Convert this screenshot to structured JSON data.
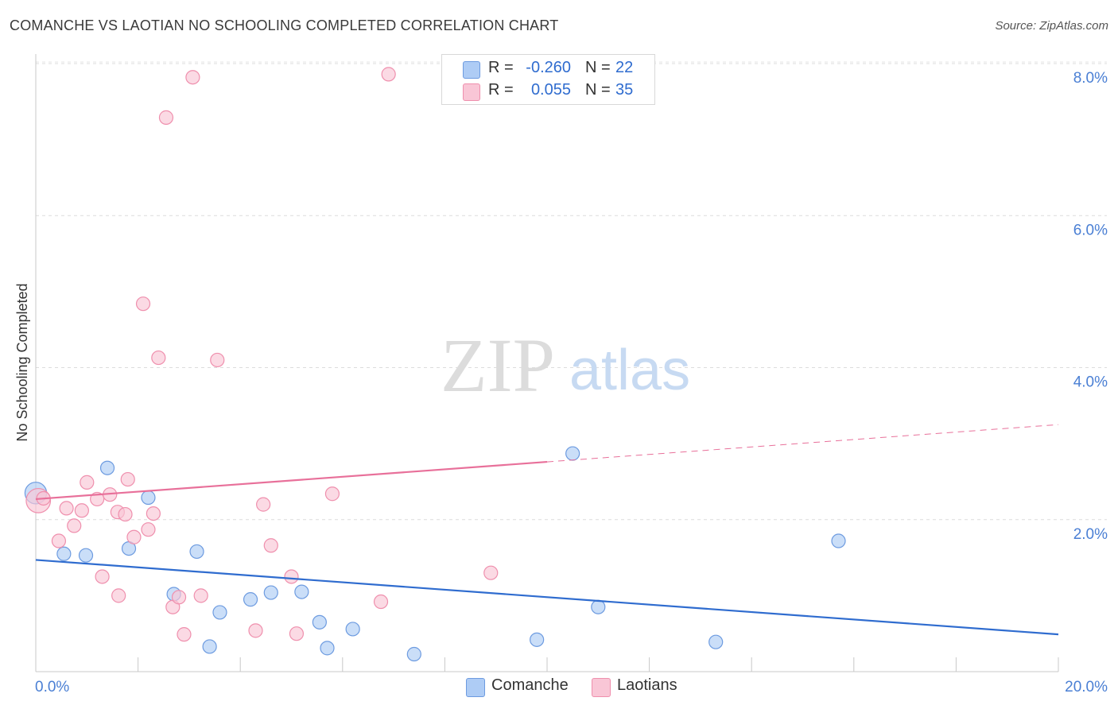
{
  "title": "COMANCHE VS LAOTIAN NO SCHOOLING COMPLETED CORRELATION CHART",
  "source": "Source: ZipAtlas.com",
  "watermark": {
    "zip": "ZIP",
    "atlas": "atlas"
  },
  "legend": {
    "rows": [
      {
        "r_label": "R =",
        "r_value": "-0.260",
        "n_label": "N =",
        "n_value": "22",
        "color": "#aeccf5",
        "border": "#6d9be0"
      },
      {
        "r_label": "R =",
        "r_value": "0.055",
        "n_label": "N =",
        "n_value": "35",
        "color": "#f9c6d6",
        "border": "#ef8fad"
      }
    ]
  },
  "bottom_legend": [
    {
      "label": "Comanche",
      "color": "#aeccf5",
      "border": "#6d9be0"
    },
    {
      "label": "Laotians",
      "color": "#f9c6d6",
      "border": "#ef8fad"
    }
  ],
  "chart_data": {
    "type": "scatter",
    "title": "COMANCHE VS LAOTIAN NO SCHOOLING COMPLETED CORRELATION CHART",
    "xlabel": "",
    "ylabel": "No Schooling Completed",
    "xlim": [
      0,
      20
    ],
    "ylim": [
      0,
      8
    ],
    "x_tick_labels": [
      "0.0%",
      "20.0%"
    ],
    "y_ticks": [
      2,
      4,
      6,
      8
    ],
    "y_tick_labels": [
      "2.0%",
      "4.0%",
      "6.0%",
      "8.0%"
    ],
    "grid": "horizontal dashed",
    "legend_placement": "top-center",
    "series": [
      {
        "name": "Comanche",
        "color": "#6d9be0",
        "fill": "#aeccf5",
        "trend": {
          "x": [
            0,
            20
          ],
          "y": [
            1.47,
            0.49
          ],
          "color": "#2f6ccf",
          "dashed_from": null
        },
        "points": [
          [
            0.0,
            2.35,
            1.6
          ],
          [
            1.4,
            2.68,
            1
          ],
          [
            2.2,
            2.29,
            1
          ],
          [
            0.55,
            1.55,
            1
          ],
          [
            0.98,
            1.53,
            1
          ],
          [
            1.82,
            1.62,
            1
          ],
          [
            3.15,
            1.58,
            1
          ],
          [
            2.7,
            1.02,
            1
          ],
          [
            4.2,
            0.95,
            1
          ],
          [
            4.6,
            1.04,
            1
          ],
          [
            5.2,
            1.05,
            1
          ],
          [
            3.6,
            0.78,
            1
          ],
          [
            5.55,
            0.65,
            1
          ],
          [
            6.2,
            0.56,
            1
          ],
          [
            3.4,
            0.33,
            1
          ],
          [
            5.7,
            0.31,
            1
          ],
          [
            7.4,
            0.23,
            1
          ],
          [
            9.8,
            0.42,
            1
          ],
          [
            10.5,
            2.87,
            1
          ],
          [
            11.0,
            0.85,
            1
          ],
          [
            13.3,
            0.39,
            1
          ],
          [
            15.7,
            1.72,
            1
          ]
        ]
      },
      {
        "name": "Laotians",
        "color": "#ef8fad",
        "fill": "#f9c6d6",
        "trend": {
          "x": [
            0,
            20
          ],
          "y": [
            2.27,
            3.25
          ],
          "color": "#e8709a",
          "dashed_from": 10
        },
        "points": [
          [
            0.05,
            2.25,
            1.8
          ],
          [
            0.15,
            2.28,
            1
          ],
          [
            0.45,
            1.72,
            1
          ],
          [
            0.6,
            2.15,
            1
          ],
          [
            0.75,
            1.92,
            1
          ],
          [
            0.9,
            2.12,
            1
          ],
          [
            1.0,
            2.49,
            1
          ],
          [
            1.2,
            2.27,
            1
          ],
          [
            1.3,
            1.25,
            1
          ],
          [
            1.45,
            2.33,
            1
          ],
          [
            1.6,
            2.1,
            1
          ],
          [
            1.75,
            2.07,
            1
          ],
          [
            1.62,
            1.0,
            1
          ],
          [
            1.8,
            2.53,
            1
          ],
          [
            1.92,
            1.77,
            1
          ],
          [
            2.1,
            4.84,
            1
          ],
          [
            2.2,
            1.87,
            1
          ],
          [
            2.3,
            2.08,
            1
          ],
          [
            2.4,
            4.13,
            1
          ],
          [
            2.55,
            7.29,
            1
          ],
          [
            2.68,
            0.85,
            1
          ],
          [
            2.8,
            0.98,
            1
          ],
          [
            2.9,
            0.49,
            1
          ],
          [
            3.07,
            7.82,
            1
          ],
          [
            3.23,
            1.0,
            1
          ],
          [
            3.55,
            4.1,
            1
          ],
          [
            4.3,
            0.54,
            1
          ],
          [
            4.45,
            2.2,
            1
          ],
          [
            4.6,
            1.66,
            1
          ],
          [
            5.0,
            1.25,
            1
          ],
          [
            5.1,
            0.5,
            1
          ],
          [
            5.8,
            2.34,
            1
          ],
          [
            6.75,
            0.92,
            1
          ],
          [
            6.9,
            7.86,
            1
          ],
          [
            8.9,
            1.3,
            1
          ]
        ]
      }
    ]
  }
}
